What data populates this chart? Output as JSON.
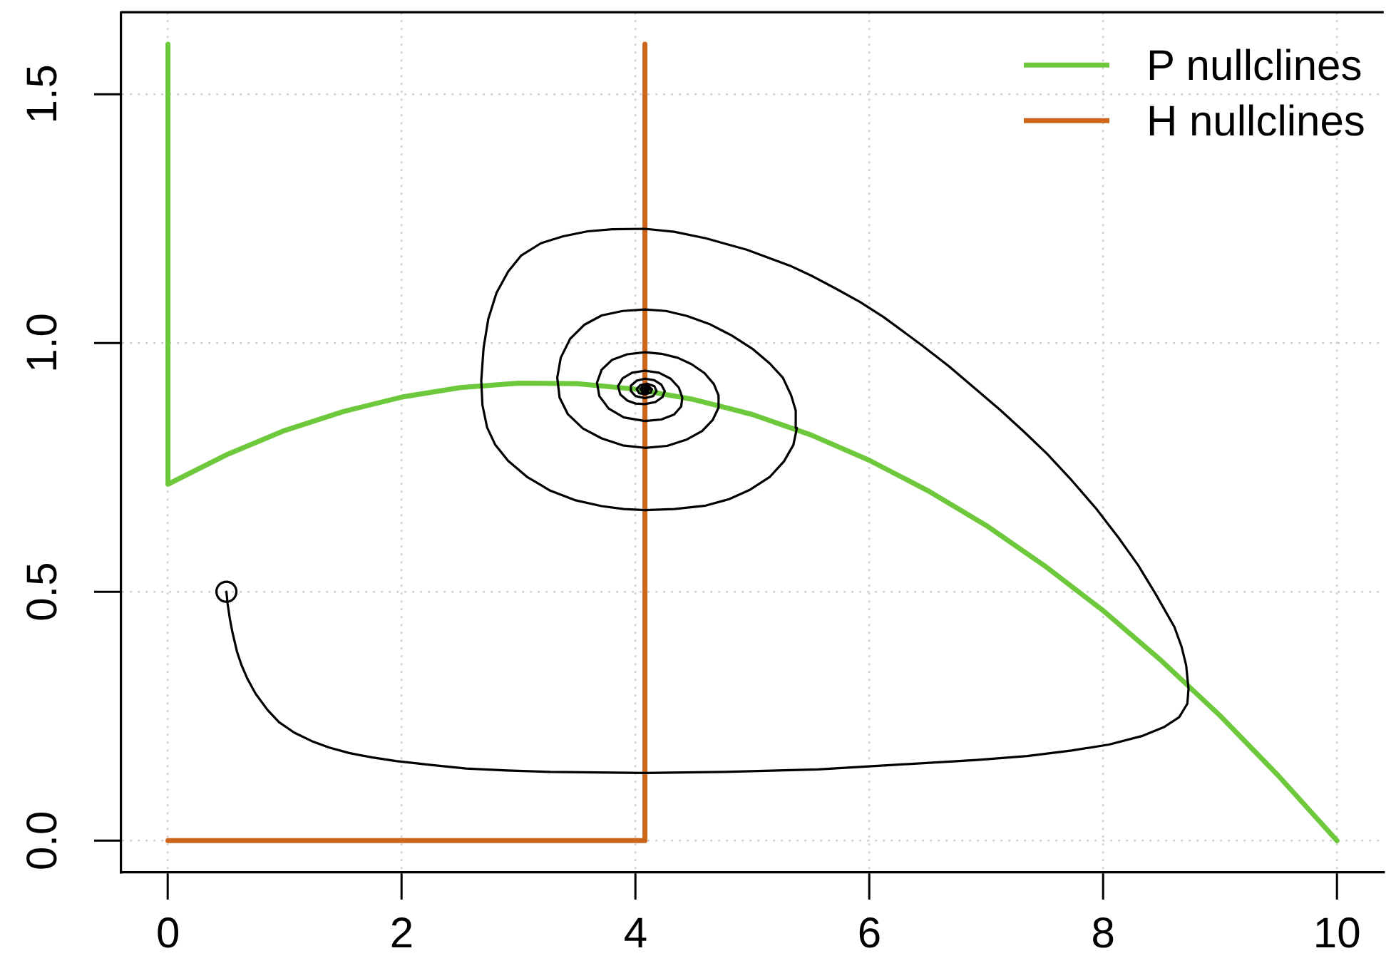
{
  "chart_data": {
    "type": "line",
    "xlim": [
      -0.4,
      10.4
    ],
    "ylim": [
      -0.064,
      1.664
    ],
    "xticks": [
      0,
      2,
      4,
      6,
      8,
      10
    ],
    "yticks": [
      {
        "value": 0,
        "label": "0.0"
      },
      0.5,
      {
        "value": 1,
        "label": "1.0"
      },
      1.5
    ],
    "grid": true,
    "legend": "top right",
    "marker": "none",
    "line_style": "solid",
    "series": [
      {
        "name": "P nullclines",
        "color": "#6dc93b",
        "x": [
          0,
          0,
          0.5,
          1,
          1.5,
          2,
          2.5,
          3,
          3.5,
          4,
          4.5,
          5,
          5.5,
          6,
          6.5,
          7,
          7.5,
          8,
          8.5,
          9,
          9.5,
          10
        ],
        "values": [
          1.6,
          0.716,
          0.775,
          0.824,
          0.862,
          0.891,
          0.91,
          0.919,
          0.918,
          0.907,
          0.886,
          0.856,
          0.815,
          0.764,
          0.703,
          0.633,
          0.552,
          0.462,
          0.361,
          0.251,
          0.13,
          0
        ]
      },
      {
        "name": "H nullclines",
        "color": "#cd661d",
        "x": [
          0,
          4.08,
          4.08
        ],
        "values": [
          0,
          0,
          1.6
        ]
      },
      {
        "color": "#000000",
        "x": [
          0.5,
          0.51,
          0.53,
          0.55,
          0.59,
          0.63,
          0.68,
          0.75,
          0.85,
          0.95,
          1.08,
          1.23,
          1.38,
          1.55,
          1.75,
          1.95,
          2.25,
          2.55,
          2.9,
          3.27,
          3.67,
          4.08,
          4.76,
          5.56,
          6.2,
          6.92,
          7.35,
          7.73,
          8.05,
          8.33,
          8.52,
          8.65,
          8.72,
          8.73,
          8.71,
          8.67,
          8.61,
          8.45,
          8.3,
          8.13,
          7.94,
          7.73,
          7.52,
          7.32,
          7.12,
          6.92,
          6.68,
          6.45,
          6.12,
          5.92,
          5.72,
          5.52,
          5.32,
          4.95,
          4.6,
          4.33,
          4.08,
          3.8,
          3.59,
          3.38,
          3.19,
          3.02,
          2.91,
          2.81,
          2.74,
          2.7,
          2.68,
          2.69,
          2.73,
          2.8,
          2.91,
          3.07,
          3.27,
          3.48,
          3.71,
          3.9,
          4.08,
          4.33,
          4.6,
          4.8,
          4.98,
          5.15,
          5.27,
          5.35,
          5.38,
          5.37,
          5.33,
          5.26,
          5.15,
          5.0,
          4.82,
          4.63,
          4.44,
          4.26,
          4.08,
          3.89,
          3.71,
          3.56,
          3.44,
          3.36,
          3.33,
          3.35,
          3.42,
          3.55,
          3.71,
          3.89,
          4.08,
          4.27,
          4.44,
          4.57,
          4.66,
          4.71,
          4.71,
          4.67,
          4.59,
          4.48,
          4.36,
          4.22,
          4.08,
          3.93,
          3.8,
          3.71,
          3.67,
          3.69,
          3.77,
          3.9,
          4.08,
          4.22,
          4.33,
          4.39,
          4.4,
          4.37,
          4.3,
          4.2,
          4.08,
          3.97,
          3.89,
          3.85,
          3.87,
          3.93,
          4.0,
          4.08,
          4.17,
          4.23,
          4.25,
          4.22,
          4.16,
          4.08,
          4.01,
          3.96,
          3.96,
          4.0,
          4.08,
          4.15,
          4.18,
          4.16,
          4.1,
          4.04,
          4.01,
          4.03,
          4.08,
          4.13,
          4.14,
          4.11,
          4.06,
          4.04,
          4.06,
          4.1,
          4.12,
          4.09,
          4.06,
          4.06,
          4.09,
          4.1,
          4.08,
          4.07,
          4.08
        ],
        "values": [
          0.5,
          0.476,
          0.445,
          0.42,
          0.38,
          0.352,
          0.325,
          0.295,
          0.263,
          0.238,
          0.217,
          0.2,
          0.187,
          0.176,
          0.167,
          0.16,
          0.152,
          0.145,
          0.141,
          0.138,
          0.137,
          0.136,
          0.138,
          0.143,
          0.152,
          0.162,
          0.17,
          0.181,
          0.193,
          0.21,
          0.228,
          0.248,
          0.275,
          0.305,
          0.352,
          0.39,
          0.429,
          0.495,
          0.553,
          0.609,
          0.667,
          0.724,
          0.777,
          0.822,
          0.865,
          0.905,
          0.953,
          0.995,
          1.052,
          1.082,
          1.108,
          1.133,
          1.155,
          1.187,
          1.21,
          1.223,
          1.229,
          1.228,
          1.224,
          1.214,
          1.2,
          1.175,
          1.143,
          1.1,
          1.048,
          0.99,
          0.924,
          0.875,
          0.83,
          0.795,
          0.763,
          0.731,
          0.703,
          0.684,
          0.672,
          0.666,
          0.664,
          0.666,
          0.673,
          0.686,
          0.705,
          0.731,
          0.762,
          0.795,
          0.829,
          0.864,
          0.895,
          0.93,
          0.958,
          0.988,
          1.015,
          1.038,
          1.054,
          1.064,
          1.067,
          1.064,
          1.055,
          1.036,
          1.008,
          0.97,
          0.93,
          0.89,
          0.857,
          0.828,
          0.808,
          0.794,
          0.789,
          0.793,
          0.806,
          0.823,
          0.845,
          0.87,
          0.894,
          0.917,
          0.939,
          0.957,
          0.97,
          0.978,
          0.981,
          0.977,
          0.966,
          0.946,
          0.92,
          0.893,
          0.868,
          0.85,
          0.843,
          0.846,
          0.856,
          0.872,
          0.89,
          0.91,
          0.928,
          0.94,
          0.944,
          0.94,
          0.929,
          0.913,
          0.896,
          0.884,
          0.878,
          0.877,
          0.881,
          0.891,
          0.903,
          0.916,
          0.925,
          0.928,
          0.924,
          0.914,
          0.903,
          0.893,
          0.889,
          0.893,
          0.903,
          0.913,
          0.918,
          0.915,
          0.907,
          0.899,
          0.896,
          0.9,
          0.907,
          0.913,
          0.913,
          0.907,
          0.901,
          0.901,
          0.907,
          0.911,
          0.909,
          0.905,
          0.904,
          0.907,
          0.909,
          0.907,
          0.906
        ]
      },
      {
        "type": "scatter",
        "marker": "circle",
        "color": "#000000",
        "x": [
          0.5
        ],
        "values": [
          0.5
        ]
      }
    ]
  }
}
